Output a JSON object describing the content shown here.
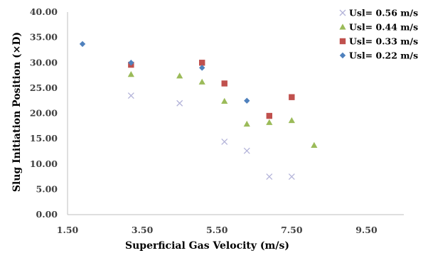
{
  "chart_data": {
    "type": "scatter",
    "xlabel": "Superficial Gas Velocity (m/s)",
    "ylabel": "Slug Initiation Position (×D)",
    "xlim": [
      1.5,
      10.5
    ],
    "ylim": [
      0,
      40
    ],
    "xticks": [
      1.5,
      3.5,
      5.5,
      7.5,
      9.5
    ],
    "xtick_labels": [
      "1.50",
      "3.50",
      "5.50",
      "7.50",
      "9.50"
    ],
    "yticks": [
      0,
      5,
      10,
      15,
      20,
      25,
      30,
      35,
      40
    ],
    "ytick_labels": [
      "0.00",
      "5.00",
      "10.00",
      "15.00",
      "20.00",
      "25.00",
      "30.00",
      "35.00",
      "40.00"
    ],
    "grid": false,
    "legend_position": "top-right",
    "series": [
      {
        "name": "Usl= 0.56 m/s",
        "marker": "x",
        "color": "#b3b3d9",
        "points": [
          [
            3.2,
            23.5
          ],
          [
            4.5,
            22.0
          ],
          [
            5.7,
            14.4
          ],
          [
            6.3,
            12.6
          ],
          [
            6.9,
            7.5
          ],
          [
            7.5,
            7.5
          ]
        ]
      },
      {
        "name": "Usl= 0.44 m/s",
        "marker": "triangle",
        "color": "#9bbb59",
        "points": [
          [
            3.2,
            27.7
          ],
          [
            4.5,
            27.4
          ],
          [
            5.1,
            26.2
          ],
          [
            5.7,
            22.4
          ],
          [
            6.3,
            17.9
          ],
          [
            6.9,
            18.2
          ],
          [
            7.5,
            18.6
          ],
          [
            8.1,
            13.7
          ]
        ]
      },
      {
        "name": "Usl= 0.33 m/s",
        "marker": "square",
        "color": "#c0504d",
        "points": [
          [
            3.2,
            29.6
          ],
          [
            5.1,
            30.0
          ],
          [
            5.7,
            25.9
          ],
          [
            6.9,
            19.5
          ],
          [
            7.5,
            23.2
          ]
        ]
      },
      {
        "name": "Usl= 0.22 m/s",
        "marker": "diamond",
        "color": "#4f81bd",
        "points": [
          [
            1.9,
            33.7
          ],
          [
            3.2,
            30.0
          ],
          [
            5.1,
            29.0
          ],
          [
            6.3,
            22.5
          ]
        ]
      }
    ]
  }
}
